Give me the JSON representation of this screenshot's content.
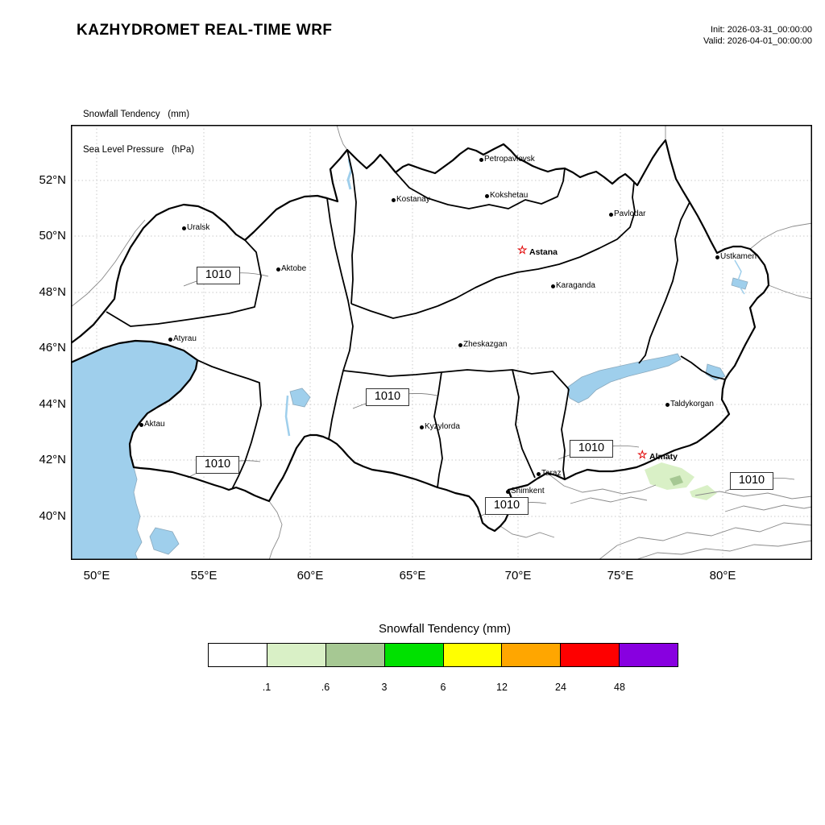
{
  "header": {
    "title": "KAZHYDROMET REAL-TIME WRF",
    "init_line": "Init: 2026-03-31_00:00:00",
    "valid_line": "Valid: 2026-04-01_00:00:00"
  },
  "fields": {
    "line1": "Snowfall Tendency   (mm)",
    "line2": "Sea Level Pressure   (hPa)"
  },
  "axes": {
    "lat": [
      "52°N",
      "50°N",
      "48°N",
      "46°N",
      "44°N",
      "42°N",
      "40°N"
    ],
    "lon": [
      "50°E",
      "55°E",
      "60°E",
      "65°E",
      "70°E",
      "75°E",
      "80°E"
    ]
  },
  "cities": [
    {
      "name": "Petropavlovsk",
      "marker": "dot"
    },
    {
      "name": "Kostanay",
      "marker": "dot"
    },
    {
      "name": "Kokshetau",
      "marker": "dot"
    },
    {
      "name": "Pavlodar",
      "marker": "dot"
    },
    {
      "name": "Uralsk",
      "marker": "dot"
    },
    {
      "name": "Astana",
      "marker": "star"
    },
    {
      "name": "Aktobe",
      "marker": "dot"
    },
    {
      "name": "Ustkamen",
      "marker": "dot"
    },
    {
      "name": "Karaganda",
      "marker": "dot"
    },
    {
      "name": "Atyrau",
      "marker": "dot"
    },
    {
      "name": "Zheskazgan",
      "marker": "dot"
    },
    {
      "name": "Aktau",
      "marker": "dot"
    },
    {
      "name": "Taldykorgan",
      "marker": "dot"
    },
    {
      "name": "Kyzylorda",
      "marker": "dot"
    },
    {
      "name": "Almaty",
      "marker": "star"
    },
    {
      "name": "Taraz",
      "marker": "dot"
    },
    {
      "name": "Shimkent",
      "marker": "dot"
    }
  ],
  "pressure_labels": [
    "1010",
    "1010",
    "1010",
    "1010",
    "1010",
    "1010"
  ],
  "legend": {
    "title": "Snowfall Tendency (mm)",
    "colors": [
      "#ffffff",
      "#d9f0c6",
      "#a6c893",
      "#00e100",
      "#ffff00",
      "#ffa600",
      "#fe0000",
      "#8800e0"
    ],
    "ticks": [
      ".1",
      ".6",
      "3",
      "6",
      "12",
      "24",
      "48"
    ]
  },
  "map": {
    "water_color": "#9fcfec",
    "snow_light_color": "#d9f0c6",
    "snow_mid_color": "#a6c893",
    "region_border_color": "#000000",
    "contour_color": "#777777",
    "grid_color": "#c9c9c9",
    "star_color": "#e00000"
  }
}
